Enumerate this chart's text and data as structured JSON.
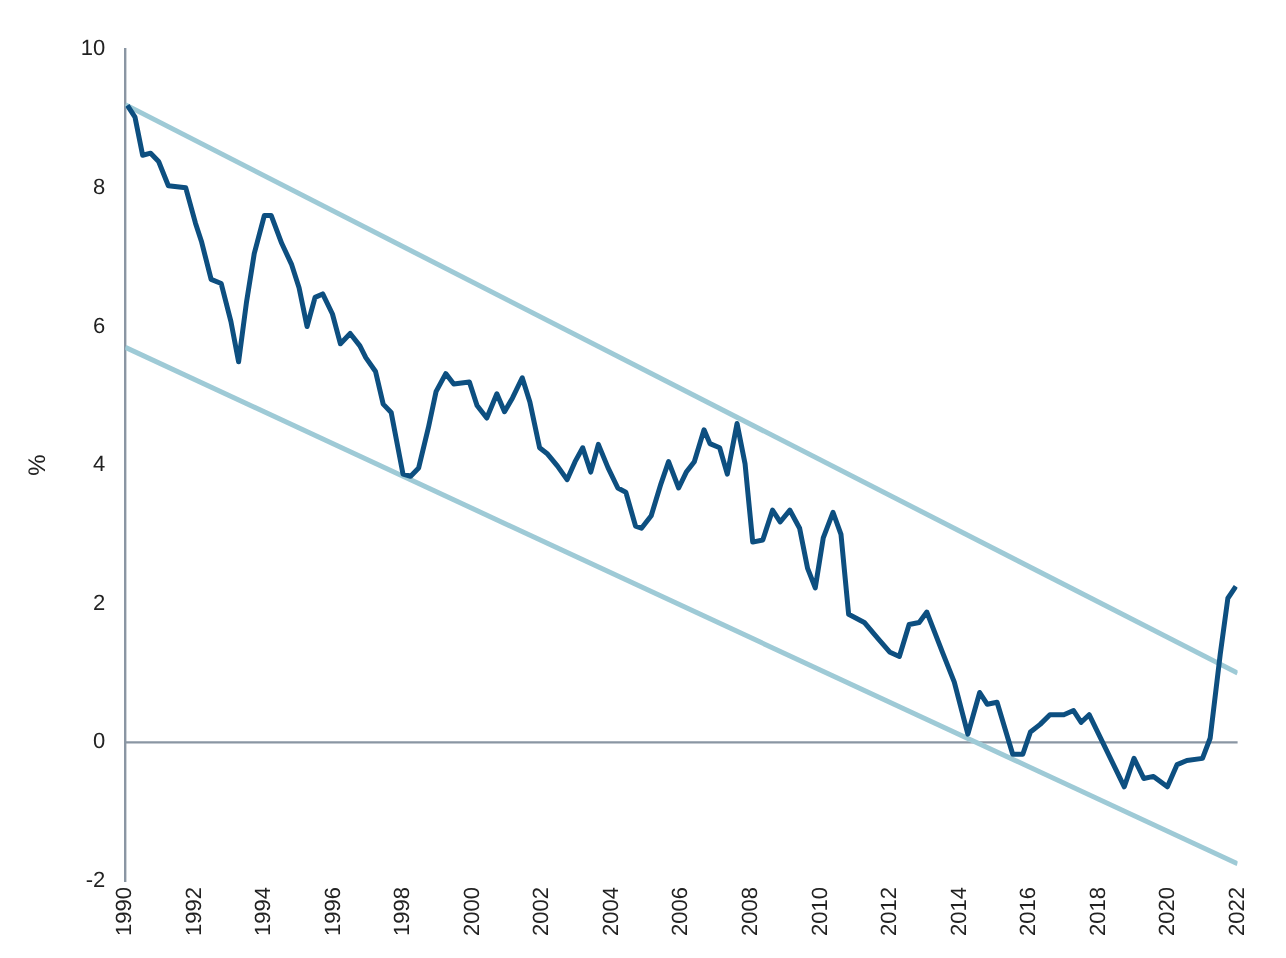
{
  "chart_data": {
    "type": "line",
    "ylabel": "%",
    "xlim": [
      1990,
      2022
    ],
    "xticks": [
      1990,
      1992,
      1994,
      1996,
      1998,
      2000,
      2002,
      2004,
      2006,
      2008,
      2010,
      2012,
      2014,
      2016,
      2018,
      2020,
      2022
    ],
    "ylim": [
      -2,
      10
    ],
    "yticks": [
      -2,
      0,
      2,
      4,
      6,
      8,
      10
    ],
    "grid": false,
    "legend": false,
    "marker": "none",
    "line_style": "solid",
    "ref_lines": [
      {
        "axis": "y",
        "value": 0,
        "color": "#8a96a3"
      }
    ],
    "series": [
      {
        "color": "#0d4f80",
        "x": [
          1990.06,
          1990.28,
          1990.5,
          1990.73,
          1990.96,
          1991.24,
          1991.74,
          1992.02,
          1992.19,
          1992.47,
          1992.76,
          1993.04,
          1993.26,
          1993.49,
          1993.71,
          1994.0,
          1994.2,
          1994.5,
          1994.78,
          1995.0,
          1995.23,
          1995.46,
          1995.68,
          1995.96,
          1996.19,
          1996.47,
          1996.75,
          1996.92,
          1997.2,
          1997.42,
          1997.65,
          1997.99,
          1998.21,
          1998.44,
          1998.72,
          1998.94,
          1999.22,
          1999.45,
          1999.9,
          2000.12,
          2000.4,
          2000.69,
          2000.91,
          2001.14,
          2001.42,
          2001.64,
          2001.92,
          2002.15,
          2002.43,
          2002.71,
          2002.94,
          2003.16,
          2003.39,
          2003.61,
          2003.89,
          2004.17,
          2004.4,
          2004.68,
          2004.85,
          2005.13,
          2005.41,
          2005.63,
          2005.92,
          2006.14,
          2006.37,
          2006.65,
          2006.82,
          2007.1,
          2007.32,
          2007.6,
          2007.83,
          2008.05,
          2008.34,
          2008.62,
          2008.84,
          2009.12,
          2009.4,
          2009.63,
          2009.85,
          2010.08,
          2010.36,
          2010.59,
          2010.81,
          2011.26,
          2011.65,
          2012.0,
          2012.27,
          2012.55,
          2012.84,
          2013.06,
          2013.51,
          2013.85,
          2014.24,
          2014.58,
          2014.8,
          2015.08,
          2015.53,
          2015.82,
          2016.04,
          2016.32,
          2016.6,
          2017.0,
          2017.28,
          2017.5,
          2017.73,
          2018.74,
          2019.02,
          2019.3,
          2019.58,
          2019.98,
          2020.26,
          2020.54,
          2020.99,
          2021.21,
          2021.5,
          2021.72,
          2021.95
        ],
        "values": [
          9.19,
          9.02,
          8.47,
          8.5,
          8.38,
          8.03,
          8.0,
          7.49,
          7.23,
          6.68,
          6.62,
          6.07,
          5.49,
          6.36,
          7.05,
          7.6,
          7.6,
          7.2,
          6.9,
          6.56,
          6.0,
          6.42,
          6.47,
          6.18,
          5.75,
          5.9,
          5.72,
          5.55,
          5.35,
          4.88,
          4.76,
          3.87,
          3.84,
          3.96,
          4.54,
          5.06,
          5.32,
          5.17,
          5.2,
          4.86,
          4.68,
          5.03,
          4.77,
          4.97,
          5.26,
          4.91,
          4.25,
          4.16,
          3.99,
          3.79,
          4.05,
          4.25,
          3.9,
          4.3,
          3.96,
          3.67,
          3.61,
          3.12,
          3.09,
          3.27,
          3.73,
          4.05,
          3.67,
          3.9,
          4.05,
          4.51,
          4.31,
          4.25,
          3.87,
          4.6,
          4.02,
          2.89,
          2.92,
          3.35,
          3.18,
          3.35,
          3.09,
          2.51,
          2.23,
          2.95,
          3.32,
          3.0,
          1.85,
          1.73,
          1.5,
          1.3,
          1.24,
          1.7,
          1.73,
          1.88,
          1.3,
          0.87,
          0.12,
          0.72,
          0.55,
          0.58,
          -0.17,
          -0.17,
          0.15,
          0.26,
          0.4,
          0.4,
          0.46,
          0.29,
          0.4,
          -0.64,
          -0.23,
          -0.52,
          -0.49,
          -0.64,
          -0.32,
          -0.26,
          -0.23,
          0.06,
          1.27,
          2.08,
          2.25
        ]
      },
      {
        "type": "line",
        "color": "#9ecad6",
        "x": [
          1990,
          2022
        ],
        "values": [
          9.2,
          1.0
        ]
      },
      {
        "type": "line",
        "color": "#9ecad6",
        "x": [
          1990,
          2022
        ],
        "values": [
          5.7,
          -1.75
        ]
      }
    ]
  }
}
